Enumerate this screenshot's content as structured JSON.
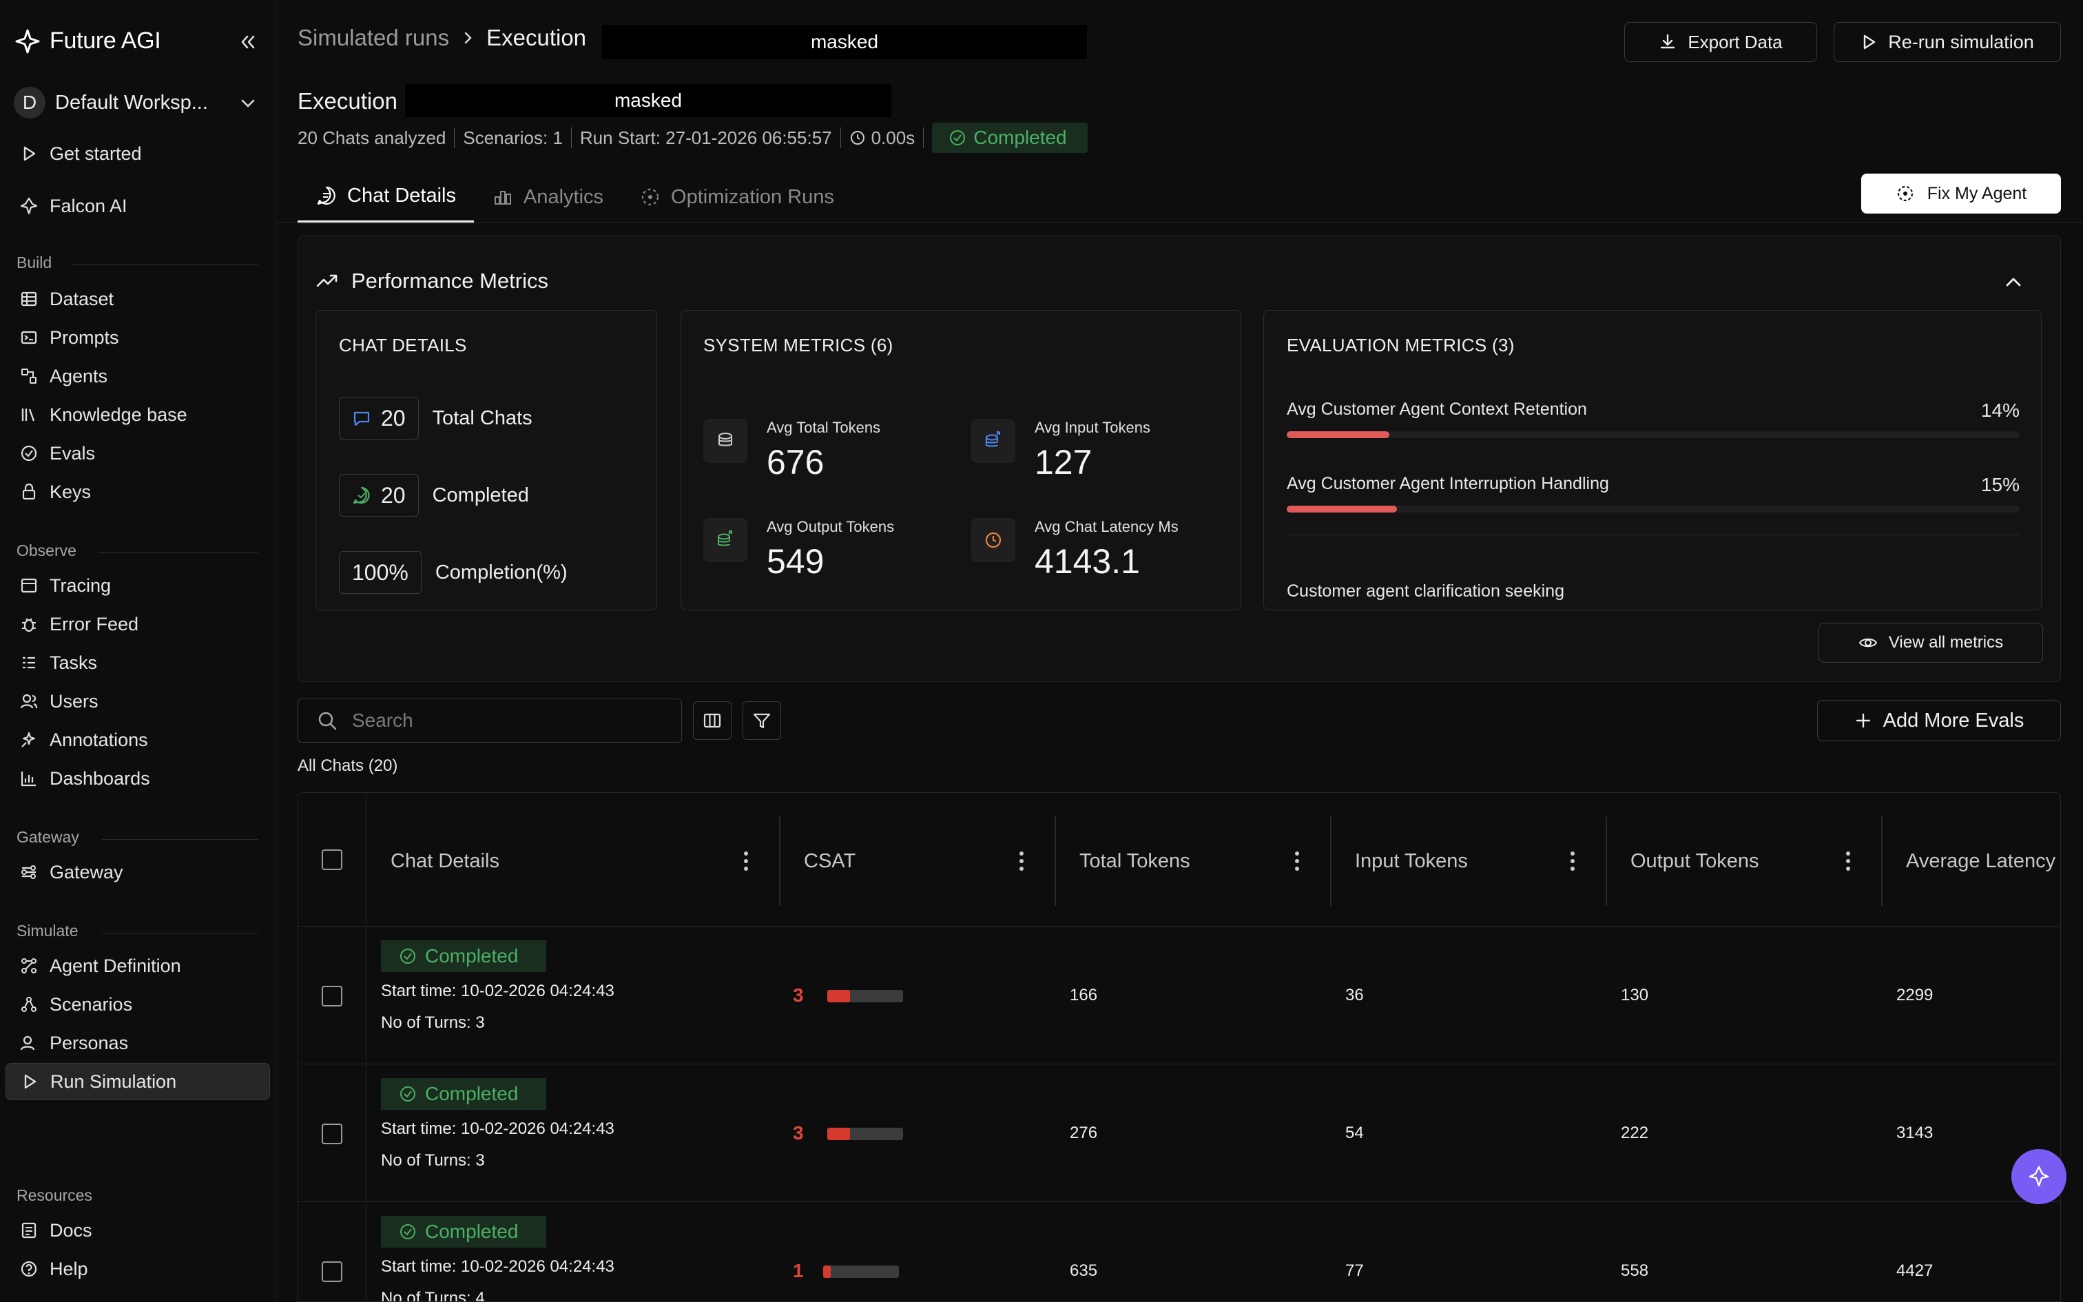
{
  "app": {
    "name": "Future AGI"
  },
  "workspace": {
    "initial": "D",
    "name": "Default Worksp..."
  },
  "sidebar": {
    "top": [
      {
        "label": "Get started"
      },
      {
        "label": "Falcon AI"
      }
    ],
    "sections": {
      "build": {
        "title": "Build",
        "items": [
          "Dataset",
          "Prompts",
          "Agents",
          "Knowledge base",
          "Evals",
          "Keys"
        ]
      },
      "observe": {
        "title": "Observe",
        "items": [
          "Tracing",
          "Error Feed",
          "Tasks",
          "Users",
          "Annotations",
          "Dashboards"
        ]
      },
      "gateway": {
        "title": "Gateway",
        "items": [
          "Gateway"
        ]
      },
      "simulate": {
        "title": "Simulate",
        "items": [
          "Agent Definition",
          "Scenarios",
          "Personas",
          "Run Simulation"
        ]
      },
      "resources": {
        "title": "Resources",
        "items": [
          "Docs",
          "Help"
        ]
      }
    }
  },
  "breadcrumb": {
    "parent": "Simulated runs",
    "current": "Execution",
    "masked": "masked"
  },
  "header": {
    "export_label": "Export Data",
    "rerun_label": "Re-run simulation",
    "title": "Execution",
    "title_masked": "masked",
    "meta": {
      "chats": "20 Chats analyzed",
      "scenarios": "Scenarios: 1",
      "run_start": "Run Start: 27-01-2026 06:55:57",
      "duration": "0.00s",
      "status": "Completed"
    }
  },
  "tabs": [
    {
      "label": "Chat Details"
    },
    {
      "label": "Analytics"
    },
    {
      "label": "Optimization Runs"
    }
  ],
  "fix_agent_label": "Fix My Agent",
  "performance": {
    "title": "Performance Metrics",
    "chat_details": {
      "title": "CHAT DETAILS",
      "total_value": "20",
      "total_label": "Total Chats",
      "completed_value": "20",
      "completed_label": "Completed",
      "completion_value": "100%",
      "completion_label": "Completion(%)"
    },
    "system": {
      "title": "SYSTEM METRICS (6)",
      "items": [
        {
          "label": "Avg Total Tokens",
          "value": "676",
          "icon": "coins-icon"
        },
        {
          "label": "Avg Input Tokens",
          "value": "127",
          "icon": "coins-in-icon"
        },
        {
          "label": "Avg Output Tokens",
          "value": "549",
          "icon": "coins-out-icon"
        },
        {
          "label": "Avg Chat Latency Ms",
          "value": "4143.1",
          "icon": "clock-icon"
        }
      ]
    },
    "evaluation": {
      "title": "EVALUATION METRICS (3)",
      "items": [
        {
          "label": "Avg Customer Agent Context Retention",
          "value": "14%",
          "fraction": 0.14
        },
        {
          "label": "Avg Customer Agent Interruption Handling",
          "value": "15%",
          "fraction": 0.15
        }
      ],
      "extra_label": "Customer agent clarification seeking"
    },
    "view_all_label": "View all metrics"
  },
  "toolbar": {
    "search_placeholder": "Search",
    "add_evals_label": "Add More Evals",
    "all_chats_label": "All Chats (20)"
  },
  "table": {
    "columns": [
      "Chat Details",
      "CSAT",
      "Total Tokens",
      "Input Tokens",
      "Output Tokens",
      "Average Latency"
    ],
    "rows": [
      {
        "status": "Completed",
        "start": "Start time: 10-02-2026 04:24:43",
        "turns": "No of Turns: 3",
        "csat": "3",
        "csat_fraction": 0.3,
        "total": "166",
        "input": "36",
        "output": "130",
        "latency": "2299"
      },
      {
        "status": "Completed",
        "start": "Start time: 10-02-2026 04:24:43",
        "turns": "No of Turns: 3",
        "csat": "3",
        "csat_fraction": 0.3,
        "total": "276",
        "input": "54",
        "output": "222",
        "latency": "3143"
      },
      {
        "status": "Completed",
        "start": "Start time: 10-02-2026 04:24:43",
        "turns": "No of Turns: 4",
        "csat": "1",
        "csat_fraction": 0.1,
        "total": "635",
        "input": "77",
        "output": "558",
        "latency": "4427"
      }
    ]
  },
  "colors": {
    "accent_green": "#4caf65",
    "bar_red": "#e05a5a",
    "fab_purple": "#7a5cf5"
  }
}
